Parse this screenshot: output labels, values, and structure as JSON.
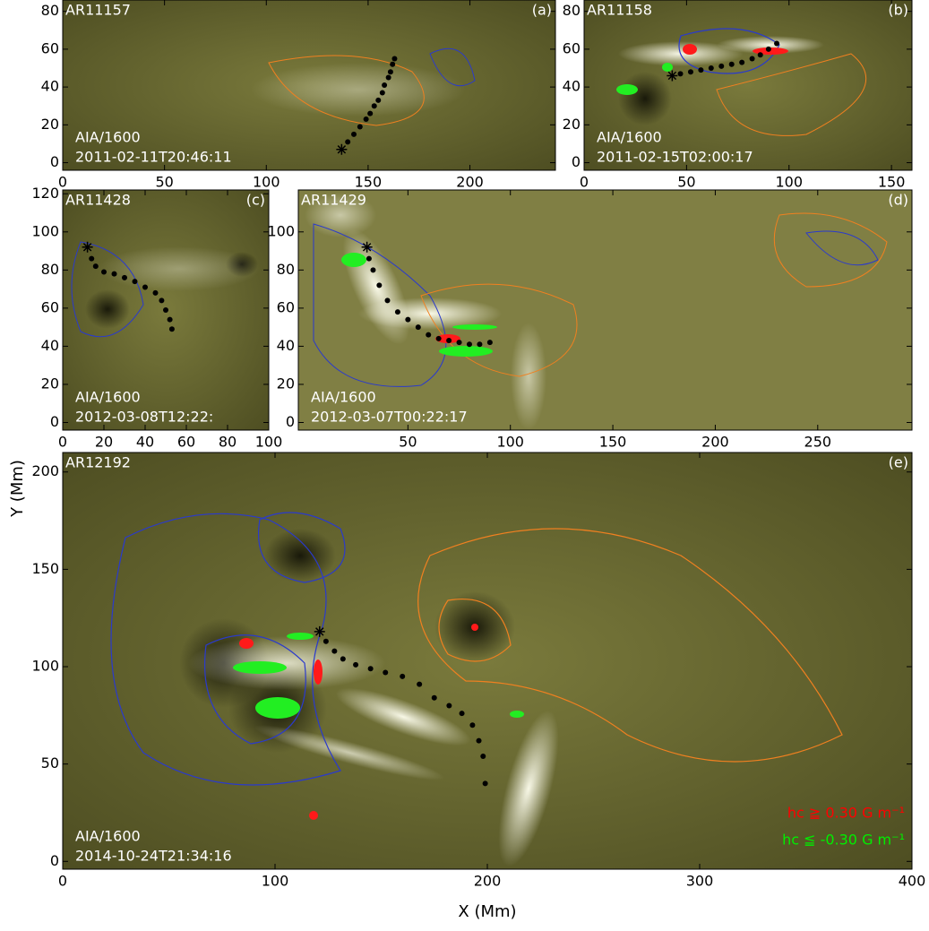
{
  "chart_data": [
    {
      "type": "image",
      "title": "AR11157",
      "panel_label": "(a)",
      "instrument": "AIA/1600",
      "timestamp": "2011-02-11T20:46:11",
      "xlim": [
        0,
        242
      ],
      "ylim": [
        -4,
        86
      ],
      "xticks": [
        0,
        50,
        100,
        150,
        200
      ],
      "yticks": [
        0,
        20,
        40,
        60,
        80
      ],
      "x": [
        137,
        140,
        143,
        146,
        149,
        151,
        153,
        155,
        157,
        158,
        160,
        161,
        162,
        163
      ],
      "values": [
        7,
        11,
        15,
        19,
        23,
        26,
        30,
        33,
        37,
        41,
        45,
        48,
        52,
        55
      ]
    },
    {
      "type": "image",
      "title": "AR11158",
      "panel_label": "(b)",
      "instrument": "AIA/1600",
      "timestamp": "2011-02-15T02:00:17",
      "xlim": [
        0,
        160
      ],
      "ylim": [
        -4,
        86
      ],
      "xticks": [
        0,
        50,
        100,
        150
      ],
      "yticks": [
        0,
        20,
        40,
        60,
        80
      ],
      "x": [
        43,
        47,
        52,
        57,
        62,
        67,
        72,
        77,
        82,
        86,
        90,
        94
      ],
      "values": [
        46,
        47,
        48,
        49,
        50,
        51,
        52,
        53,
        55,
        57,
        60,
        63
      ]
    },
    {
      "type": "image",
      "title": "AR11428",
      "panel_label": "(c)",
      "instrument": "AIA/1600",
      "timestamp": "2012-03-08T12:22:",
      "xlim": [
        0,
        100
      ],
      "ylim": [
        -4,
        122
      ],
      "xticks": [
        0,
        20,
        40,
        60,
        80,
        100
      ],
      "yticks": [
        0,
        20,
        40,
        60,
        80,
        100,
        120
      ],
      "x": [
        12,
        14,
        16,
        20,
        25,
        30,
        35,
        40,
        45,
        48,
        50,
        52,
        53
      ],
      "values": [
        92,
        86,
        82,
        79,
        78,
        76,
        74,
        71,
        68,
        64,
        59,
        54,
        49
      ]
    },
    {
      "type": "image",
      "title": "AR11429",
      "panel_label": "(d)",
      "instrument": "AIA/1600",
      "timestamp": "2012-03-07T00:22:17",
      "xlim": [
        -3.5,
        296
      ],
      "ylim": [
        -4,
        122
      ],
      "xticks": [
        50,
        100,
        150,
        200,
        250
      ],
      "yticks": [
        0,
        20,
        40,
        60,
        80,
        100
      ],
      "x": [
        30,
        31,
        33,
        36,
        40,
        45,
        50,
        55,
        60,
        65,
        70,
        75,
        80,
        85,
        90
      ],
      "values": [
        92,
        86,
        80,
        72,
        64,
        58,
        54,
        50,
        46,
        44,
        43,
        42,
        41,
        41,
        42
      ]
    },
    {
      "type": "image",
      "title": "AR12192",
      "panel_label": "(e)",
      "instrument": "AIA/1600",
      "timestamp": "2014-10-24T21:34:16",
      "x_label": "X (Mm)",
      "y_label": "Y (Mm)",
      "xlim": [
        0,
        400
      ],
      "ylim": [
        -4,
        210
      ],
      "xticks": [
        0,
        100,
        200,
        300,
        400
      ],
      "yticks": [
        0,
        50,
        100,
        150,
        200
      ],
      "x": [
        121,
        124,
        128,
        132,
        138,
        145,
        152,
        160,
        168,
        175,
        182,
        188,
        193,
        196,
        198,
        199
      ],
      "values": [
        118,
        113,
        108,
        104,
        101,
        99,
        97,
        95,
        91,
        84,
        80,
        76,
        70,
        62,
        54,
        40
      ],
      "annotations": [
        {
          "text": "hc ≧  0.30 G m⁻¹",
          "color": "#ff0000"
        },
        {
          "text": "hc ≦ -0.30 G m⁻¹",
          "color": "#00ee00"
        }
      ]
    }
  ]
}
